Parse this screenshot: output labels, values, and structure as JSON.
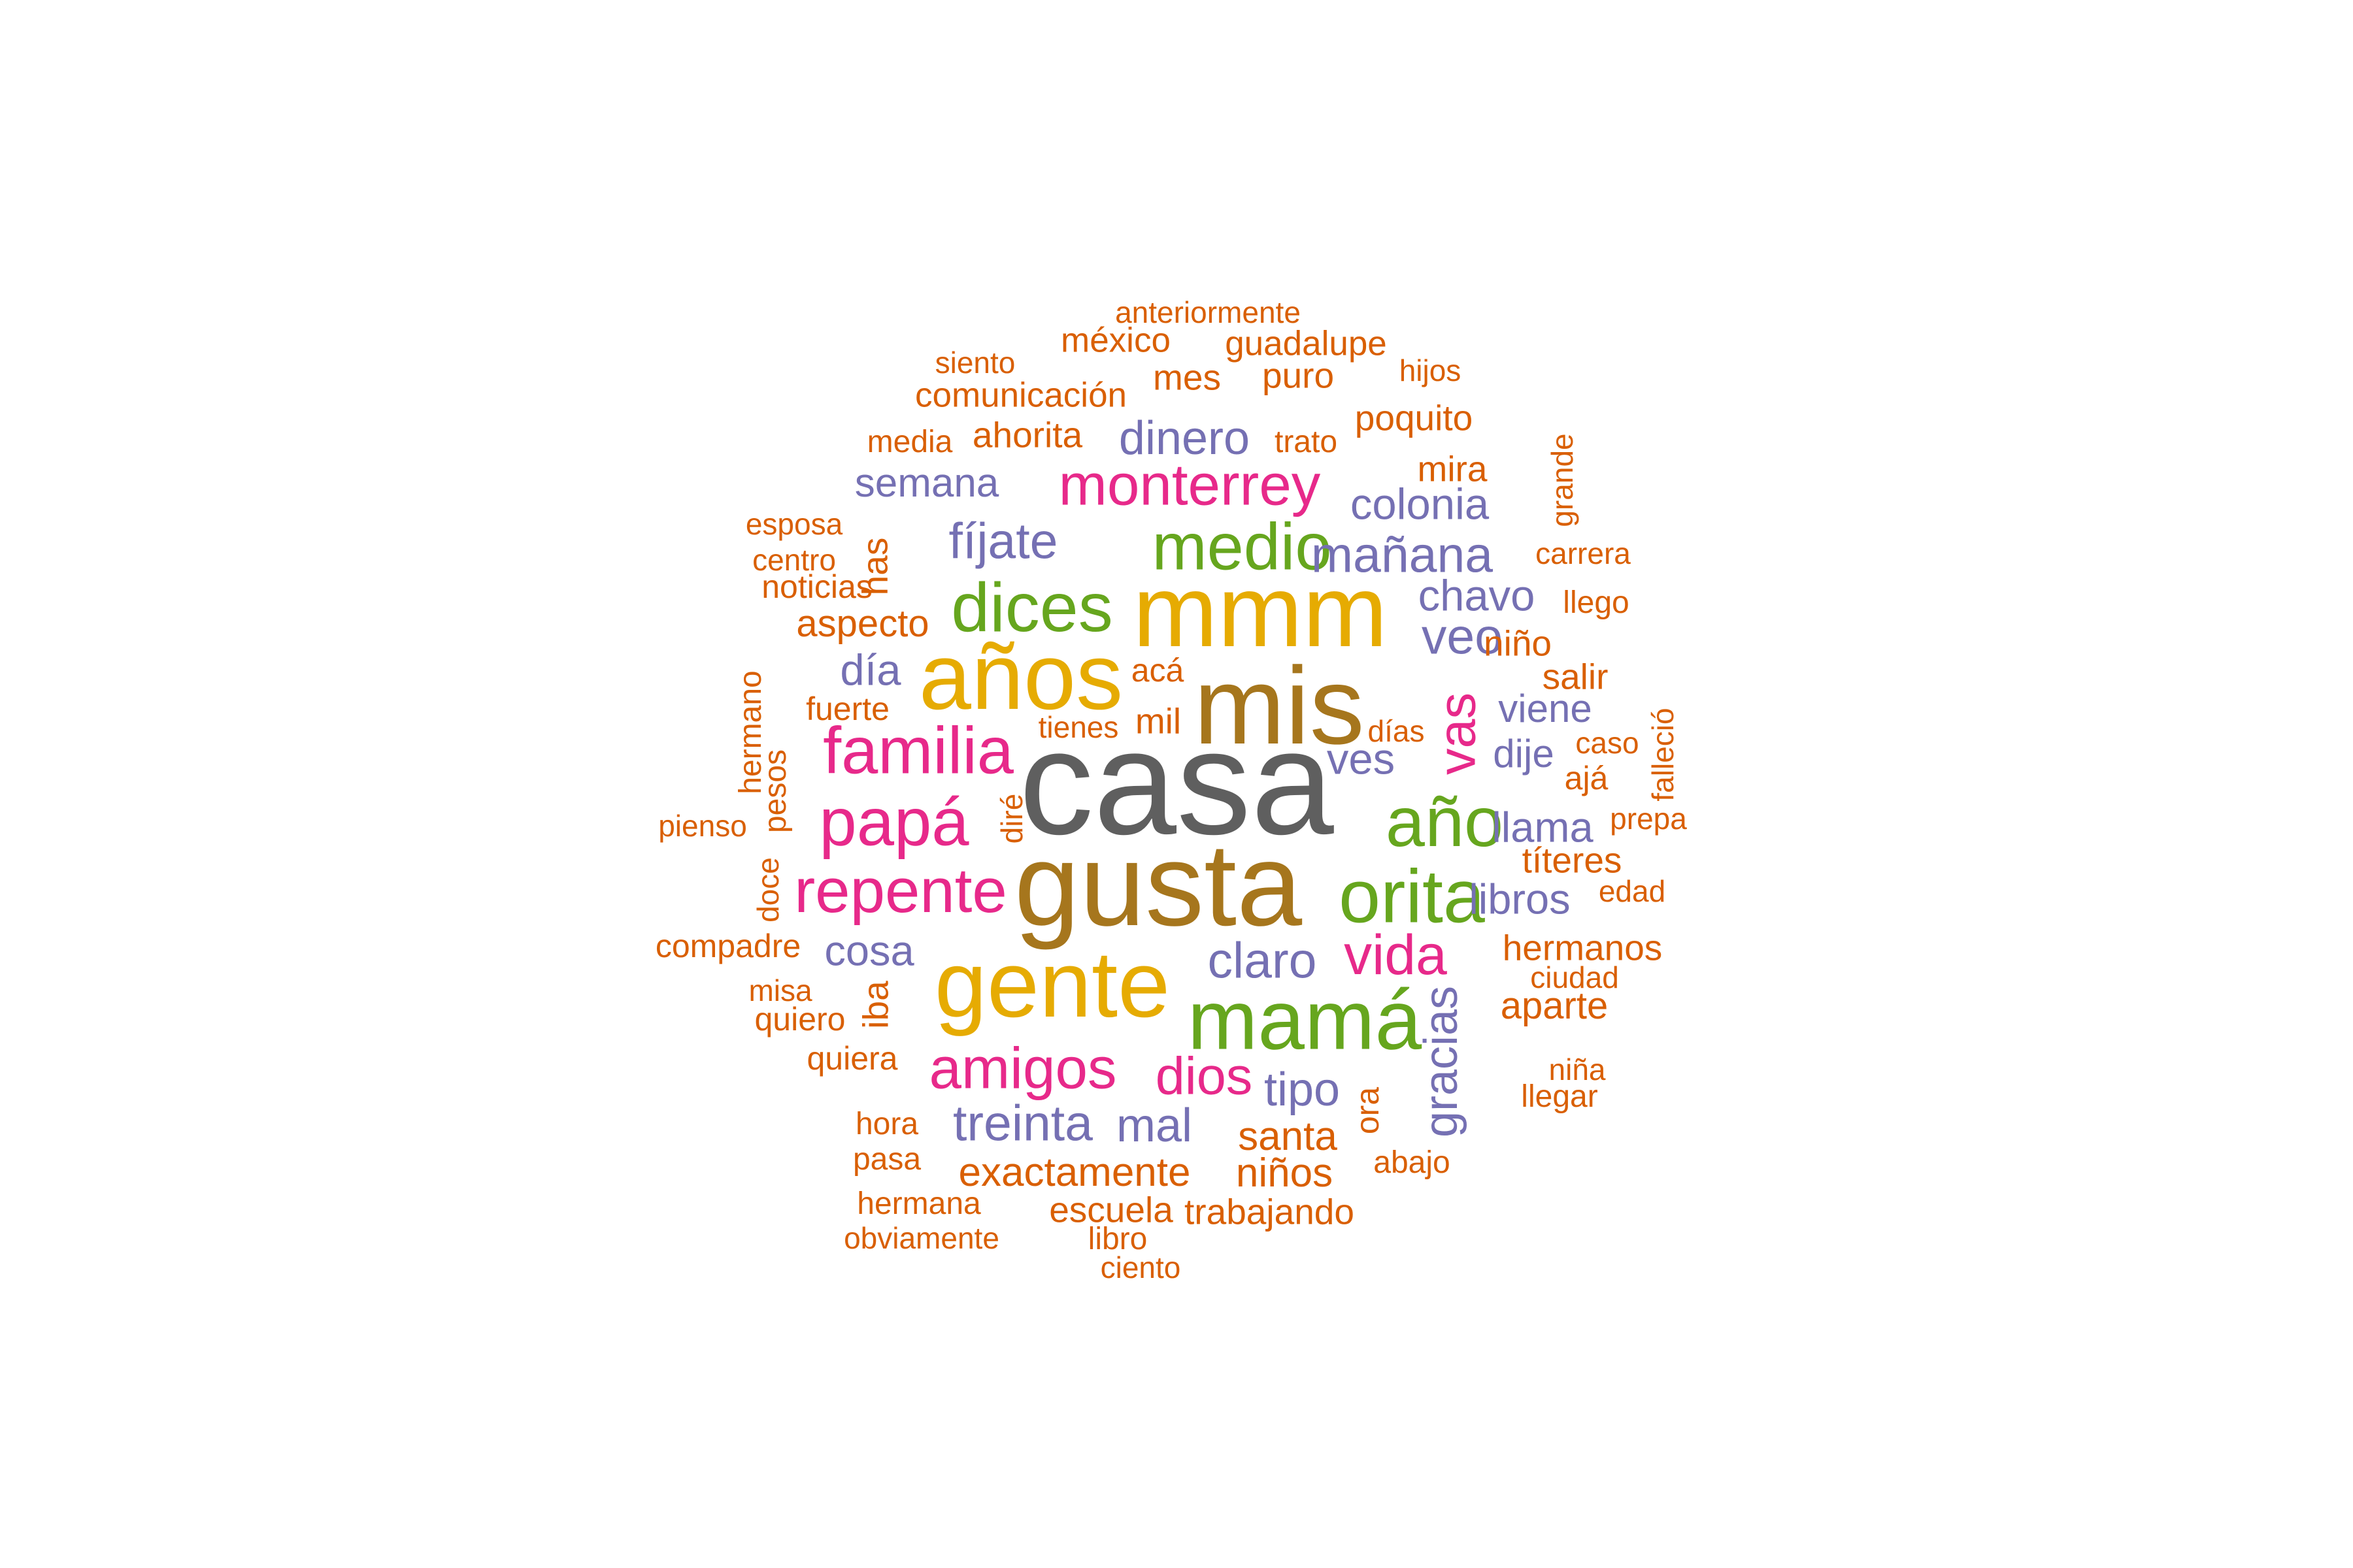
{
  "palette": {
    "gray": "#5f5f5f",
    "brown": "#a6761d",
    "gold": "#e6ab02",
    "green": "#66a61e",
    "magenta": "#e7298a",
    "purple": "#7570b3",
    "orange": "#d95f02"
  },
  "words": [
    {
      "text": "casa",
      "color": "gray",
      "weight": 10
    },
    {
      "text": "gusta",
      "color": "brown",
      "weight": 9
    },
    {
      "text": "mis",
      "color": "brown",
      "weight": 8.5
    },
    {
      "text": "mmm",
      "color": "gold",
      "weight": 8
    },
    {
      "text": "años",
      "color": "gold",
      "weight": 8
    },
    {
      "text": "gente",
      "color": "gold",
      "weight": 8
    },
    {
      "text": "mamá",
      "color": "green",
      "weight": 7.5
    },
    {
      "text": "orita",
      "color": "green",
      "weight": 6.5
    },
    {
      "text": "medio",
      "color": "green",
      "weight": 6.5
    },
    {
      "text": "dices",
      "color": "green",
      "weight": 6.5
    },
    {
      "text": "año",
      "color": "green",
      "weight": 6.5
    },
    {
      "text": "familia",
      "color": "magenta",
      "weight": 6
    },
    {
      "text": "papá",
      "color": "magenta",
      "weight": 6
    },
    {
      "text": "repente",
      "color": "magenta",
      "weight": 6
    },
    {
      "text": "amigos",
      "color": "magenta",
      "weight": 5.5
    },
    {
      "text": "monterrey",
      "color": "magenta",
      "weight": 5.5
    },
    {
      "text": "vida",
      "color": "magenta",
      "weight": 5.5
    },
    {
      "text": "dios",
      "color": "magenta",
      "weight": 5
    },
    {
      "text": "vas",
      "color": "magenta",
      "weight": 5
    },
    {
      "text": "treinta",
      "color": "purple",
      "weight": 5
    },
    {
      "text": "fíjate",
      "color": "purple",
      "weight": 5
    },
    {
      "text": "mañana",
      "color": "purple",
      "weight": 5
    },
    {
      "text": "claro",
      "color": "purple",
      "weight": 5
    },
    {
      "text": "veo",
      "color": "purple",
      "weight": 5
    },
    {
      "text": "dinero",
      "color": "purple",
      "weight": 4.5
    },
    {
      "text": "colonia",
      "color": "purple",
      "weight": 4.5
    },
    {
      "text": "semana",
      "color": "purple",
      "weight": 4
    },
    {
      "text": "chavo",
      "color": "purple",
      "weight": 4.5
    },
    {
      "text": "día",
      "color": "purple",
      "weight": 4.5
    },
    {
      "text": "ves",
      "color": "purple",
      "weight": 4.5
    },
    {
      "text": "viene",
      "color": "purple",
      "weight": 4
    },
    {
      "text": "dije",
      "color": "purple",
      "weight": 4
    },
    {
      "text": "llama",
      "color": "purple",
      "weight": 4
    },
    {
      "text": "libros",
      "color": "purple",
      "weight": 4.2
    },
    {
      "text": "cosa",
      "color": "purple",
      "weight": 4.2
    },
    {
      "text": "tipo",
      "color": "purple",
      "weight": 4.5
    },
    {
      "text": "mal",
      "color": "purple",
      "weight": 4.5
    },
    {
      "text": "gracias",
      "color": "purple",
      "weight": 4.5
    },
    {
      "text": "anteriormente",
      "color": "orange",
      "weight": 3
    },
    {
      "text": "méxico",
      "color": "orange",
      "weight": 3.5
    },
    {
      "text": "guadalupe",
      "color": "orange",
      "weight": 3.5
    },
    {
      "text": "siento",
      "color": "orange",
      "weight": 3
    },
    {
      "text": "hijos",
      "color": "orange",
      "weight": 3
    },
    {
      "text": "mes",
      "color": "orange",
      "weight": 3.5
    },
    {
      "text": "puro",
      "color": "orange",
      "weight": 3.5
    },
    {
      "text": "comunicación",
      "color": "orange",
      "weight": 3.5
    },
    {
      "text": "poquito",
      "color": "orange",
      "weight": 3.5
    },
    {
      "text": "media",
      "color": "orange",
      "weight": 3.3
    },
    {
      "text": "ahorita",
      "color": "orange",
      "weight": 3.5
    },
    {
      "text": "trato",
      "color": "orange",
      "weight": 3.2
    },
    {
      "text": "grande",
      "color": "orange",
      "weight": 3
    },
    {
      "text": "mira",
      "color": "orange",
      "weight": 3.5
    },
    {
      "text": "esposa",
      "color": "orange",
      "weight": 3
    },
    {
      "text": "centro",
      "color": "orange",
      "weight": 3
    },
    {
      "text": "has",
      "color": "orange",
      "weight": 3.5
    },
    {
      "text": "carrera",
      "color": "orange",
      "weight": 3
    },
    {
      "text": "noticias",
      "color": "orange",
      "weight": 3.3
    },
    {
      "text": "llego",
      "color": "orange",
      "weight": 3.2
    },
    {
      "text": "aspecto",
      "color": "orange",
      "weight": 3.8
    },
    {
      "text": "niño",
      "color": "orange",
      "weight": 3.5
    },
    {
      "text": "hermano",
      "color": "orange",
      "weight": 3.2
    },
    {
      "text": "acá",
      "color": "orange",
      "weight": 3.3
    },
    {
      "text": "salir",
      "color": "orange",
      "weight": 3.5
    },
    {
      "text": "fuerte",
      "color": "orange",
      "weight": 3.3
    },
    {
      "text": "mil",
      "color": "orange",
      "weight": 3.5
    },
    {
      "text": "tienes",
      "color": "orange",
      "weight": 3
    },
    {
      "text": "días",
      "color": "orange",
      "weight": 3
    },
    {
      "text": "caso",
      "color": "orange",
      "weight": 3
    },
    {
      "text": "falleció",
      "color": "orange",
      "weight": 3
    },
    {
      "text": "pesos",
      "color": "orange",
      "weight": 3.2
    },
    {
      "text": "ajá",
      "color": "orange",
      "weight": 3.3
    },
    {
      "text": "pienso",
      "color": "orange",
      "weight": 3
    },
    {
      "text": "diré",
      "color": "orange",
      "weight": 3
    },
    {
      "text": "prepa",
      "color": "orange",
      "weight": 3
    },
    {
      "text": "títeres",
      "color": "orange",
      "weight": 3.5
    },
    {
      "text": "doce",
      "color": "orange",
      "weight": 3.2
    },
    {
      "text": "edad",
      "color": "orange",
      "weight": 3
    },
    {
      "text": "compadre",
      "color": "orange",
      "weight": 3.3
    },
    {
      "text": "hermanos",
      "color": "orange",
      "weight": 3.8
    },
    {
      "text": "ciudad",
      "color": "orange",
      "weight": 3
    },
    {
      "text": "misa",
      "color": "orange",
      "weight": 3
    },
    {
      "text": "iba",
      "color": "orange",
      "weight": 3.5
    },
    {
      "text": "aparte",
      "color": "orange",
      "weight": 3.8
    },
    {
      "text": "quiero",
      "color": "orange",
      "weight": 3.3
    },
    {
      "text": "quiera",
      "color": "orange",
      "weight": 3.3
    },
    {
      "text": "niña",
      "color": "orange",
      "weight": 3
    },
    {
      "text": "ora",
      "color": "orange",
      "weight": 3.3
    },
    {
      "text": "llegar",
      "color": "orange",
      "weight": 3.2
    },
    {
      "text": "hora",
      "color": "orange",
      "weight": 3.2
    },
    {
      "text": "santa",
      "color": "orange",
      "weight": 4
    },
    {
      "text": "pasa",
      "color": "orange",
      "weight": 3.2
    },
    {
      "text": "exactamente",
      "color": "orange",
      "weight": 4
    },
    {
      "text": "abajo",
      "color": "orange",
      "weight": 3.2
    },
    {
      "text": "niños",
      "color": "orange",
      "weight": 4
    },
    {
      "text": "hermana",
      "color": "orange",
      "weight": 3.2
    },
    {
      "text": "escuela",
      "color": "orange",
      "weight": 3.5
    },
    {
      "text": "trabajando",
      "color": "orange",
      "weight": 3.5
    },
    {
      "text": "obviamente",
      "color": "orange",
      "weight": 3
    },
    {
      "text": "libro",
      "color": "orange",
      "weight": 3.2
    },
    {
      "text": "ciento",
      "color": "orange",
      "weight": 3
    }
  ]
}
